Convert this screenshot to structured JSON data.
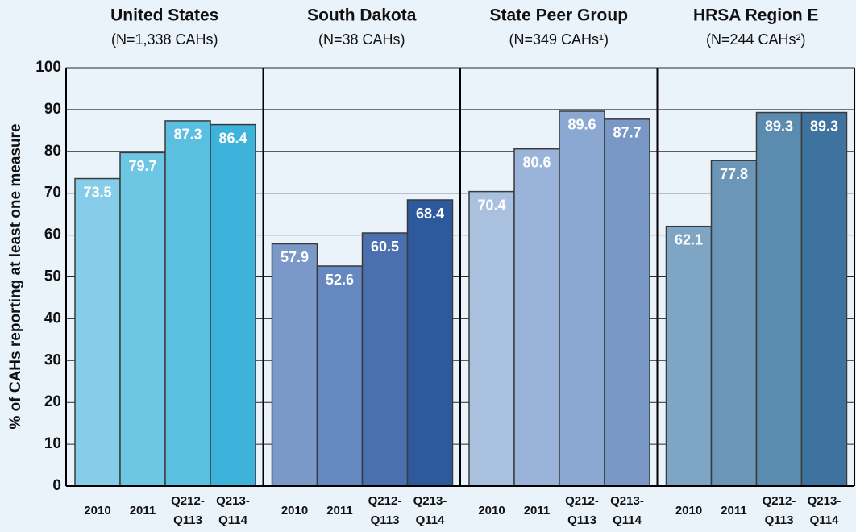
{
  "chart_data": [
    {
      "type": "bar",
      "title": "United States",
      "subtitle": "(N=1,338 CAHs)",
      "y_label": "% of CAHs reporting at least one measure",
      "categories": [
        "2010",
        "2011",
        "Q212-Q113",
        "Q213-Q114"
      ],
      "values": [
        73.5,
        79.7,
        87.3,
        86.4
      ],
      "colors": [
        "#85cde8",
        "#6ec6e5",
        "#5bbfe0",
        "#3db3db"
      ],
      "ylim": [
        0,
        100
      ],
      "yticks": [
        0,
        10,
        20,
        30,
        40,
        50,
        60,
        70,
        80,
        90,
        100
      ],
      "grid": true
    },
    {
      "type": "bar",
      "title": "South Dakota",
      "subtitle": "(N=38 CAHs)",
      "categories": [
        "2010",
        "2011",
        "Q212-Q113",
        "Q213-Q114"
      ],
      "values": [
        57.9,
        52.6,
        60.5,
        68.4
      ],
      "colors": [
        "#7a98c8",
        "#6688c0",
        "#4a70b0",
        "#2d5a9d"
      ],
      "ylim": [
        0,
        100
      ],
      "yticks": [
        0,
        10,
        20,
        30,
        40,
        50,
        60,
        70,
        80,
        90,
        100
      ],
      "grid": true
    },
    {
      "type": "bar",
      "title": "State Peer Group",
      "subtitle": "(N=349 CAHs¹)",
      "categories": [
        "2010",
        "2011",
        "Q212-Q113",
        "Q213-Q114"
      ],
      "values": [
        70.4,
        80.6,
        89.6,
        87.7
      ],
      "colors": [
        "#aac0df",
        "#9ab3d8",
        "#8ba8d2",
        "#7a98c6"
      ],
      "ylim": [
        0,
        100
      ],
      "yticks": [
        0,
        10,
        20,
        30,
        40,
        50,
        60,
        70,
        80,
        90,
        100
      ],
      "grid": true
    },
    {
      "type": "bar",
      "title": "HRSA Region E",
      "subtitle": "(N=244 CAHs²)",
      "categories": [
        "2010",
        "2011",
        "Q212-Q113",
        "Q213-Q114"
      ],
      "values": [
        62.1,
        77.8,
        89.3,
        89.3
      ],
      "colors": [
        "#7ea5c3",
        "#6b96b8",
        "#5b8cb0",
        "#3f739f"
      ],
      "ylim": [
        0,
        100
      ],
      "yticks": [
        0,
        10,
        20,
        30,
        40,
        50,
        60,
        70,
        80,
        90,
        100
      ],
      "grid": true
    }
  ]
}
